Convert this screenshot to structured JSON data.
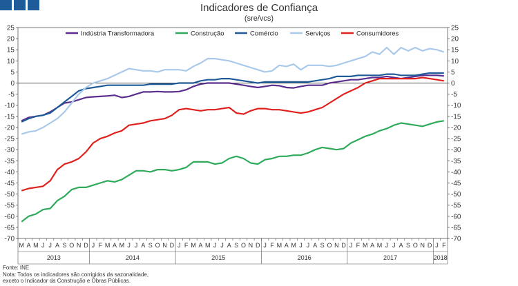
{
  "header": {
    "title": "Indicadores de Confiança",
    "subtitle": "(sre/vcs)"
  },
  "notes": {
    "source": "Fonte: INE",
    "line1": "Nota: Todos os indicadores são corrigidos da sazonalidade,",
    "line2": "exceto o Indicador da Construção e Obras Públicas."
  },
  "colors": {
    "industria": "#5b2d8e",
    "construcao": "#2eaa5a",
    "comercio": "#1f5b99",
    "servicos": "#a9c9ea",
    "consumidores": "#e0201c",
    "logo": "#1f5b99"
  },
  "chart_data": {
    "type": "line",
    "title": "Indicadores de Confiança",
    "subtitle": "(sre/vcs)",
    "ylim": [
      -70,
      25
    ],
    "yticks": [
      25,
      20,
      15,
      10,
      5,
      0,
      -5,
      -10,
      -15,
      -20,
      -25,
      -30,
      -35,
      -40,
      -45,
      -50,
      -55,
      -60,
      -65,
      -70
    ],
    "legend_position": "top",
    "x": [
      "M",
      "A",
      "M",
      "J",
      "J",
      "A",
      "S",
      "O",
      "N",
      "D",
      "J",
      "F",
      "M",
      "A",
      "M",
      "J",
      "J",
      "A",
      "S",
      "O",
      "N",
      "D",
      "J",
      "F",
      "M",
      "A",
      "M",
      "J",
      "J",
      "A",
      "S",
      "O",
      "N",
      "D",
      "J",
      "F",
      "M",
      "A",
      "M",
      "J",
      "J",
      "A",
      "S",
      "O",
      "N",
      "D",
      "J",
      "F",
      "M",
      "A",
      "M",
      "J",
      "J",
      "A",
      "S",
      "O",
      "N",
      "D",
      "J",
      "F"
    ],
    "years": [
      {
        "label": "2013",
        "start": 0,
        "end": 9
      },
      {
        "label": "2014",
        "start": 10,
        "end": 21
      },
      {
        "label": "2015",
        "start": 22,
        "end": 33
      },
      {
        "label": "2016",
        "start": 34,
        "end": 45
      },
      {
        "label": "2017",
        "start": 46,
        "end": 57
      },
      {
        "label": "2018",
        "start": 58,
        "end": 59
      }
    ],
    "series": [
      {
        "key": "industria",
        "name": "Indústria Transformadora",
        "values": [
          -17,
          -15.5,
          -15,
          -14.5,
          -13,
          -11,
          -9,
          -8.5,
          -7.5,
          -6.5,
          -6.2,
          -6,
          -5.8,
          -5.5,
          -6.5,
          -6,
          -5,
          -4,
          -4,
          -3.8,
          -4,
          -4,
          -3.8,
          -3,
          -1.5,
          -0.5,
          0,
          0,
          0,
          0,
          -0.5,
          -1,
          -1.5,
          -2,
          -1.5,
          -1,
          -1.2,
          -2,
          -2.2,
          -1.5,
          -1,
          -1,
          -1,
          0,
          0.5,
          1,
          1.5,
          1.5,
          2,
          2.5,
          2.5,
          3,
          2.5,
          2,
          2.5,
          3,
          3.5,
          3.5,
          3.5,
          3.2
        ]
      },
      {
        "key": "construcao",
        "name": "Construção",
        "values": [
          -62.5,
          -60,
          -59,
          -57,
          -56.5,
          -53,
          -51,
          -48,
          -47,
          -47,
          -46,
          -45,
          -44,
          -44.5,
          -43.5,
          -41.5,
          -39.5,
          -39.5,
          -40,
          -39,
          -39,
          -39.5,
          -39,
          -38,
          -35.5,
          -35.5,
          -35.5,
          -36.5,
          -36,
          -34,
          -33,
          -34,
          -36,
          -36.5,
          -34.5,
          -34,
          -33,
          -33,
          -32.5,
          -32.5,
          -31.5,
          -30,
          -29,
          -29.5,
          -30,
          -29.5,
          -27,
          -25.5,
          -24,
          -23,
          -21.5,
          -20.5,
          -19,
          -18,
          -18.5,
          -19,
          -19.5,
          -18.5,
          -17.5,
          -17
        ]
      },
      {
        "key": "comercio",
        "name": "Comércio",
        "values": [
          -17.5,
          -16,
          -15,
          -14.5,
          -13.5,
          -11,
          -8.5,
          -6,
          -3.5,
          -2.5,
          -2,
          -1.5,
          -1,
          -1,
          -1,
          -1,
          -1,
          -1,
          -0.5,
          -0.5,
          -0.5,
          -0.5,
          0,
          0,
          0,
          1,
          1.5,
          1.5,
          2,
          2,
          1.5,
          1,
          0.5,
          0,
          0.5,
          0.5,
          0.5,
          0.5,
          0.5,
          0.5,
          0.5,
          1,
          1.5,
          2,
          3,
          3,
          3,
          3.5,
          3.5,
          3.5,
          3.5,
          4,
          4,
          3.5,
          3.5,
          3.5,
          4,
          4.5,
          4.5,
          4.5
        ]
      },
      {
        "key": "servicos",
        "name": "Serviços",
        "values": [
          -23,
          -22,
          -21.5,
          -20,
          -18,
          -16,
          -13,
          -9,
          -5,
          -2,
          0,
          1,
          2,
          3.5,
          5,
          6.5,
          6,
          5.5,
          5.5,
          5,
          6,
          6,
          6,
          5.5,
          7.5,
          9,
          11,
          11,
          10.5,
          10,
          9,
          8,
          7,
          6,
          5,
          5.5,
          8,
          7.5,
          8.5,
          6,
          8,
          8,
          8,
          7.5,
          8,
          9,
          10,
          11,
          12,
          14,
          13,
          16,
          13,
          16,
          14.5,
          16,
          14.5,
          15.5,
          15,
          14
        ]
      },
      {
        "key": "consumidores",
        "name": "Consumidores",
        "values": [
          -48.5,
          -47.5,
          -47,
          -46.5,
          -44,
          -39,
          -36.5,
          -35.5,
          -34,
          -31,
          -27,
          -25,
          -24,
          -22.5,
          -21.5,
          -19,
          -18.5,
          -18,
          -17,
          -16.5,
          -16,
          -14.5,
          -12,
          -11.5,
          -12,
          -12.5,
          -12,
          -12,
          -11.5,
          -11,
          -13.5,
          -14,
          -12.5,
          -11.5,
          -11.5,
          -12,
          -12,
          -12.5,
          -13,
          -13.5,
          -13,
          -12,
          -11,
          -9,
          -7,
          -5,
          -3.5,
          -2,
          0,
          1,
          2,
          2,
          2,
          2,
          2,
          2,
          2.5,
          2,
          1.5,
          1
        ]
      }
    ]
  }
}
